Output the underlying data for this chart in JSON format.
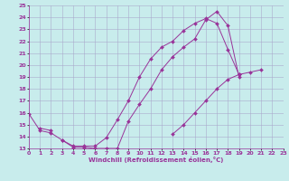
{
  "xlabel": "Windchill (Refroidissement éolien,°C)",
  "background_color": "#c8ecec",
  "grid_color": "#aaaacc",
  "line_color": "#993399",
  "xmin": 0,
  "xmax": 23,
  "ymin": 13,
  "ymax": 25,
  "series": [
    {
      "x": [
        0,
        1,
        2,
        3,
        4,
        5,
        6,
        7,
        8,
        9,
        10,
        11,
        12,
        13,
        14,
        15,
        16,
        17,
        18,
        19
      ],
      "y": [
        15.9,
        14.5,
        14.3,
        13.7,
        13.1,
        13.1,
        13.0,
        13.0,
        13.0,
        15.3,
        16.7,
        18.0,
        19.6,
        20.7,
        21.5,
        22.2,
        23.8,
        24.5,
        23.3,
        19.0
      ]
    },
    {
      "x": [
        3,
        4,
        5,
        6,
        7,
        8,
        9,
        10,
        11,
        12,
        13,
        14,
        15,
        16,
        17,
        18,
        19
      ],
      "y": [
        13.7,
        13.2,
        13.2,
        13.2,
        13.9,
        15.4,
        17.0,
        19.0,
        20.5,
        21.5,
        22.0,
        22.9,
        23.5,
        23.9,
        23.5,
        21.3,
        19.2
      ]
    },
    {
      "x": [
        1,
        2,
        13,
        14,
        15,
        16,
        17,
        18,
        19,
        20,
        21
      ],
      "y": [
        14.7,
        14.5,
        14.2,
        15.0,
        16.0,
        17.0,
        18.0,
        18.8,
        19.2,
        19.4,
        19.6
      ]
    }
  ]
}
